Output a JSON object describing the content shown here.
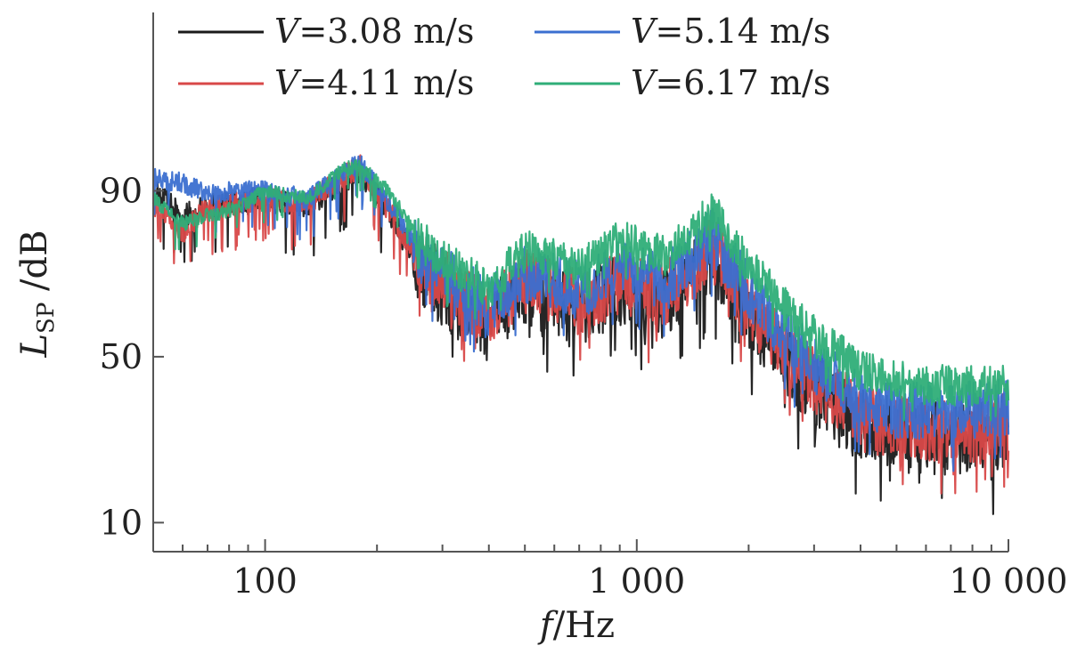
{
  "chart_data": {
    "type": "line",
    "x_scale": "log",
    "xlim": [
      50,
      10000
    ],
    "ylim": [
      3,
      133
    ],
    "x_ticks": [
      {
        "value": 100,
        "label": "100"
      },
      {
        "value": 1000,
        "label": "1 000"
      },
      {
        "value": 10000,
        "label": "10 000"
      }
    ],
    "y_ticks": [
      {
        "value": 10,
        "label": "10"
      },
      {
        "value": 50,
        "label": "50"
      },
      {
        "value": 90,
        "label": "90"
      }
    ],
    "xlabel": {
      "symbol": "f",
      "unit": "/Hz"
    },
    "ylabel": {
      "symbol": "L",
      "sub": "SP",
      "unit": " /dB"
    },
    "grid": false,
    "legend_position": "top",
    "series": [
      {
        "name": "V=3.08 m/s",
        "name_symbol": "V",
        "name_value": "=3.08 m/s",
        "color": "#1a1a1a",
        "envelope": [
          [
            50,
            90
          ],
          [
            60,
            84
          ],
          [
            70,
            86
          ],
          [
            85,
            87
          ],
          [
            100,
            88
          ],
          [
            130,
            86
          ],
          [
            160,
            92
          ],
          [
            180,
            95
          ],
          [
            220,
            83
          ],
          [
            260,
            72
          ],
          [
            320,
            64
          ],
          [
            400,
            57
          ],
          [
            500,
            67
          ],
          [
            700,
            61
          ],
          [
            900,
            66
          ],
          [
            1200,
            63
          ],
          [
            1600,
            74
          ],
          [
            2000,
            60
          ],
          [
            2500,
            49
          ],
          [
            3000,
            42
          ],
          [
            4000,
            34
          ],
          [
            5000,
            31
          ],
          [
            7000,
            30
          ],
          [
            10000,
            32
          ]
        ],
        "amplitude": 9
      },
      {
        "name": "V=4.11 m/s",
        "name_symbol": "V",
        "name_value": "=4.11 m/s",
        "color": "#d84848",
        "envelope": [
          [
            50,
            87
          ],
          [
            60,
            80
          ],
          [
            70,
            86
          ],
          [
            85,
            87
          ],
          [
            100,
            88
          ],
          [
            130,
            87
          ],
          [
            160,
            93
          ],
          [
            180,
            96
          ],
          [
            220,
            84
          ],
          [
            260,
            73
          ],
          [
            320,
            66
          ],
          [
            400,
            59
          ],
          [
            500,
            68
          ],
          [
            700,
            63
          ],
          [
            900,
            68
          ],
          [
            1200,
            65
          ],
          [
            1600,
            76
          ],
          [
            2000,
            62
          ],
          [
            2500,
            51
          ],
          [
            3000,
            44
          ],
          [
            4000,
            36
          ],
          [
            5000,
            33
          ],
          [
            7000,
            32
          ],
          [
            10000,
            34
          ]
        ],
        "amplitude": 8
      },
      {
        "name": "V=5.14 m/s",
        "name_symbol": "V",
        "name_value": "=5.14 m/s",
        "color": "#3b6fd0",
        "envelope": [
          [
            50,
            93
          ],
          [
            60,
            92
          ],
          [
            70,
            89
          ],
          [
            85,
            90
          ],
          [
            100,
            90
          ],
          [
            130,
            88
          ],
          [
            160,
            94
          ],
          [
            180,
            97
          ],
          [
            220,
            86
          ],
          [
            260,
            75
          ],
          [
            320,
            68
          ],
          [
            400,
            62
          ],
          [
            500,
            70
          ],
          [
            700,
            66
          ],
          [
            900,
            71
          ],
          [
            1200,
            68
          ],
          [
            1600,
            79
          ],
          [
            2000,
            66
          ],
          [
            2500,
            55
          ],
          [
            3000,
            48
          ],
          [
            4000,
            40
          ],
          [
            5000,
            37
          ],
          [
            7000,
            37
          ],
          [
            10000,
            38
          ]
        ],
        "amplitude": 7
      },
      {
        "name": "V=6.17 m/s",
        "name_symbol": "V",
        "name_value": "=6.17 m/s",
        "color": "#2fae78",
        "envelope": [
          [
            50,
            88
          ],
          [
            60,
            82
          ],
          [
            70,
            84
          ],
          [
            85,
            86
          ],
          [
            100,
            90
          ],
          [
            130,
            88
          ],
          [
            160,
            95
          ],
          [
            180,
            96
          ],
          [
            220,
            89
          ],
          [
            260,
            78
          ],
          [
            320,
            72
          ],
          [
            400,
            66
          ],
          [
            500,
            76
          ],
          [
            700,
            71
          ],
          [
            900,
            78
          ],
          [
            1200,
            74
          ],
          [
            1600,
            85
          ],
          [
            2000,
            72
          ],
          [
            2500,
            62
          ],
          [
            3000,
            55
          ],
          [
            4000,
            47
          ],
          [
            5000,
            44
          ],
          [
            7000,
            43
          ],
          [
            10000,
            43
          ]
        ],
        "amplitude": 5
      }
    ]
  }
}
